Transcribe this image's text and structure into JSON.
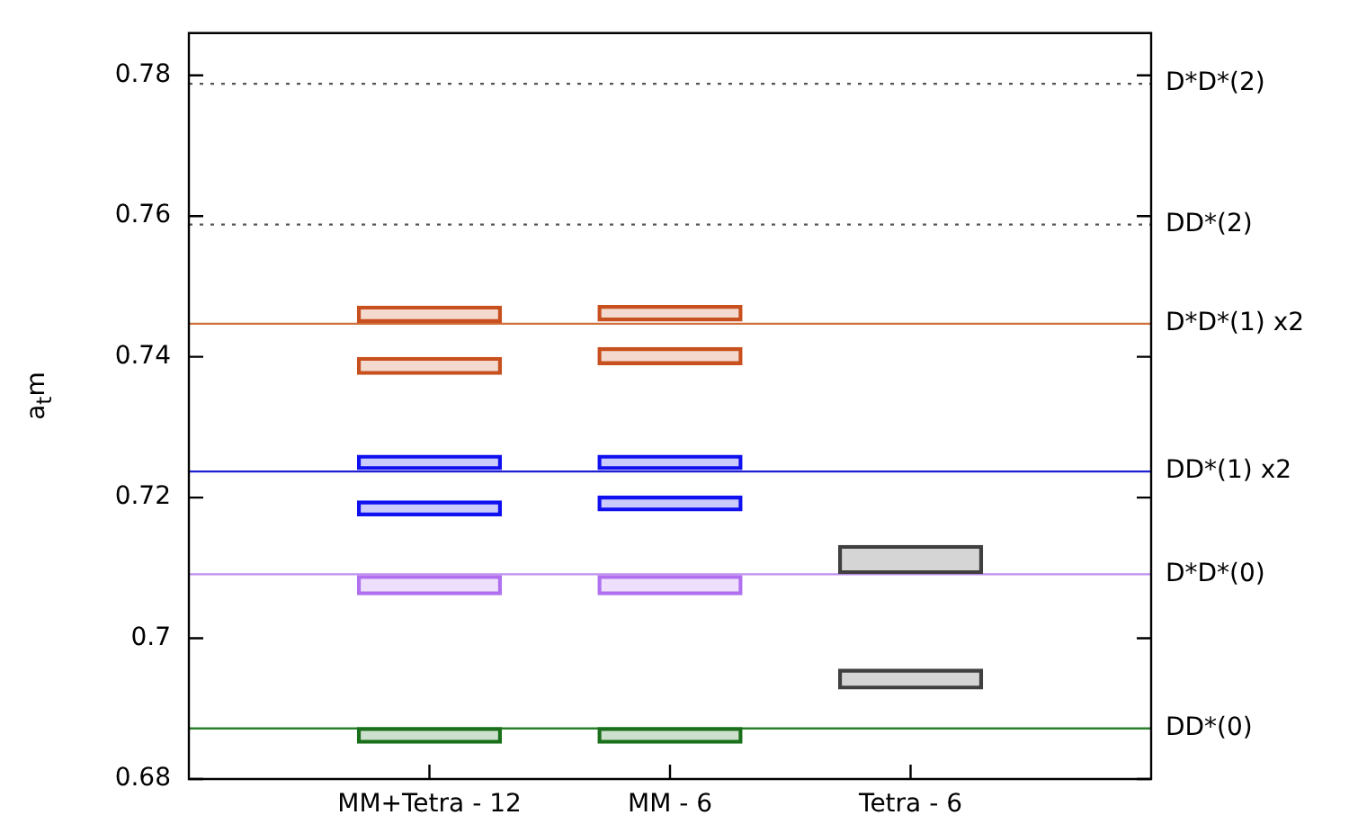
{
  "chart_data": {
    "type": "bar",
    "ylabel": "a$_{t}$m",
    "categories": [
      "MM+Tetra - 12",
      "MM - 6",
      "Tetra - 6"
    ],
    "series": [
      {
        "color": "#c8501e",
        "base": [
          0.7449,
          0.7451,
          null
        ],
        "values": [
          0.0023,
          0.0022,
          null
        ]
      },
      {
        "color": "#c8501e",
        "base": [
          0.7375,
          0.7389,
          null
        ],
        "values": [
          0.0024,
          0.0024,
          null
        ]
      },
      {
        "color": "#1010f0",
        "base": [
          0.724,
          0.724,
          null
        ],
        "values": [
          0.002,
          0.002,
          null
        ]
      },
      {
        "color": "#1010f0",
        "base": [
          0.7174,
          0.7181,
          null
        ],
        "values": [
          0.0021,
          0.0021,
          null
        ]
      },
      {
        "color": "#b070f0",
        "base": [
          0.7062,
          0.7062,
          null
        ],
        "values": [
          0.0027,
          0.0027,
          null
        ]
      },
      {
        "color": "#1a701a",
        "base": [
          0.6851,
          0.6851,
          null
        ],
        "values": [
          0.0022,
          0.0022,
          null
        ]
      },
      {
        "color": "#404040",
        "base": [
          null,
          null,
          0.7092
        ],
        "values": [
          null,
          null,
          0.004
        ]
      },
      {
        "color": "#404040",
        "base": [
          null,
          null,
          0.6928
        ],
        "values": [
          null,
          null,
          0.0028
        ]
      }
    ],
    "ylim": [
      0.68,
      0.786
    ],
    "yticks": [
      0.68,
      {
        "value": 0.7,
        "label": "0.7"
      },
      0.72,
      0.74,
      0.76,
      0.78
    ],
    "ref_lines": [
      {
        "axis": "y",
        "value": 0.7788,
        "label": "D*D*(2)",
        "color": "#555555",
        "line_style": "dotted"
      },
      {
        "axis": "y",
        "value": 0.7588,
        "label": "DD*(2)",
        "color": "#555555",
        "line_style": "dotted"
      },
      {
        "axis": "y",
        "value": 0.7447,
        "label": "D*D*(1) x2",
        "color": "#d0703a",
        "line_style": "solid"
      },
      {
        "axis": "y",
        "value": 0.7237,
        "label": "DD*(1) x2",
        "color": "#2020d0",
        "line_style": "solid"
      },
      {
        "axis": "y",
        "value": 0.7091,
        "label": "D*D*(0)",
        "color": "#c090f0",
        "line_style": "solid"
      },
      {
        "axis": "y",
        "value": 0.6872,
        "label": "DD*(0)",
        "color": "#2a802a",
        "line_style": "solid"
      }
    ],
    "grid": false,
    "legend": false
  }
}
